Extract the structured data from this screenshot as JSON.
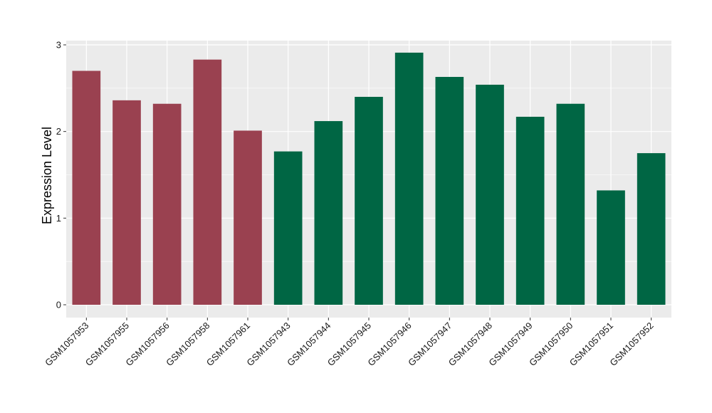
{
  "chart_data": {
    "type": "bar",
    "title": "",
    "xlabel": "",
    "ylabel": "Expression Level",
    "ylim": [
      0,
      3.1
    ],
    "yticks": [
      0,
      1,
      2,
      3
    ],
    "yticks_labels": [
      "0",
      "1",
      "2",
      "3"
    ],
    "grid": true,
    "legend": "none",
    "categories": [
      "GSM1057953",
      "GSM1057955",
      "GSM1057956",
      "GSM1057958",
      "GSM1057961",
      "GSM1057943",
      "GSM1057944",
      "GSM1057945",
      "GSM1057946",
      "GSM1057947",
      "GSM1057948",
      "GSM1057949",
      "GSM1057950",
      "GSM1057951",
      "GSM1057952"
    ],
    "values": [
      2.7,
      2.36,
      2.32,
      2.83,
      2.01,
      1.77,
      2.12,
      2.4,
      2.91,
      2.63,
      2.54,
      2.17,
      2.32,
      1.32,
      1.75
    ],
    "groups": [
      0,
      0,
      0,
      0,
      0,
      1,
      1,
      1,
      1,
      1,
      1,
      1,
      1,
      1,
      1
    ],
    "group_colors": [
      "#9a4150",
      "#006644"
    ],
    "panel_background": "#ebebeb",
    "gridline_color": "#ffffff"
  }
}
